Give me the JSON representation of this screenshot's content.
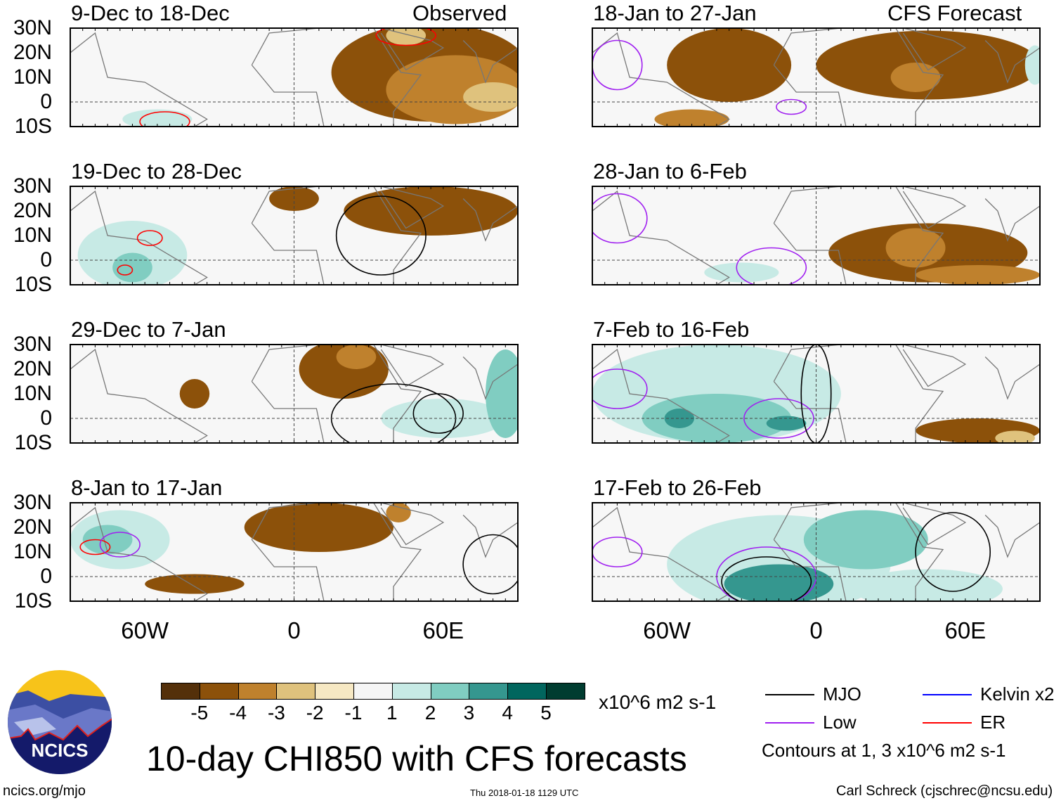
{
  "header": {
    "observed_label": "Observed",
    "forecast_label": "CFS Forecast"
  },
  "lat_labels": [
    "30N",
    "20N",
    "10N",
    "0",
    "10S"
  ],
  "lon_labels": [
    "60W",
    "0",
    "60E"
  ],
  "panels": [
    {
      "title": "9-Dec to 18-Dec",
      "shading": [
        [
          55,
          12,
          40,
          20,
          1
        ],
        [
          65,
          5,
          28,
          14,
          2
        ],
        [
          80,
          2,
          12,
          6,
          3
        ],
        [
          45,
          27,
          8,
          4,
          3
        ],
        [
          -55,
          -7,
          14,
          4,
          6
        ]
      ],
      "contours": [
        [
          -52,
          -8,
          10,
          4,
          "er"
        ],
        [
          45,
          27,
          12,
          4,
          "er"
        ]
      ]
    },
    {
      "title": "19-Dec to 28-Dec",
      "shading": [
        [
          -65,
          2,
          22,
          14,
          6
        ],
        [
          -65,
          -3,
          8,
          6,
          7
        ],
        [
          0,
          25,
          10,
          5,
          1
        ],
        [
          55,
          20,
          35,
          10,
          1
        ]
      ],
      "contours": [
        [
          -58,
          9,
          5,
          3,
          "er"
        ],
        [
          -68,
          -4,
          3,
          2,
          "er"
        ],
        [
          35,
          10,
          18,
          16,
          "mjo"
        ]
      ]
    },
    {
      "title": "29-Dec to 7-Jan",
      "shading": [
        [
          20,
          20,
          18,
          12,
          1
        ],
        [
          25,
          25,
          8,
          5,
          2
        ],
        [
          -40,
          10,
          6,
          6,
          1
        ],
        [
          60,
          0,
          25,
          8,
          6
        ],
        [
          85,
          10,
          8,
          18,
          7
        ]
      ],
      "contours": [
        [
          40,
          0,
          25,
          14,
          "mjo"
        ],
        [
          58,
          2,
          10,
          8,
          "mjo"
        ]
      ]
    },
    {
      "title": "8-Jan to 17-Jan",
      "shading": [
        [
          -70,
          15,
          20,
          12,
          6
        ],
        [
          -75,
          15,
          10,
          6,
          7
        ],
        [
          10,
          20,
          30,
          10,
          1
        ],
        [
          42,
          26,
          5,
          4,
          2
        ],
        [
          -40,
          -3,
          20,
          4,
          1
        ]
      ],
      "contours": [
        [
          -80,
          12,
          6,
          3,
          "er"
        ],
        [
          -70,
          13,
          8,
          5,
          "low"
        ],
        [
          80,
          5,
          12,
          12,
          "mjo"
        ]
      ]
    }
  ],
  "forecast_panels": [
    {
      "title": "18-Jan to 27-Jan",
      "shading": [
        [
          -35,
          15,
          25,
          15,
          1
        ],
        [
          45,
          15,
          45,
          14,
          1
        ],
        [
          40,
          10,
          10,
          6,
          2
        ],
        [
          -50,
          -7,
          15,
          4,
          2
        ],
        [
          88,
          15,
          4,
          8,
          6
        ]
      ],
      "contours": [
        [
          -80,
          15,
          10,
          10,
          "low"
        ],
        [
          -10,
          -2,
          6,
          3,
          "low"
        ]
      ]
    },
    {
      "title": "28-Jan to 6-Feb",
      "shading": [
        [
          45,
          3,
          40,
          12,
          1
        ],
        [
          40,
          5,
          12,
          8,
          2
        ],
        [
          65,
          -6,
          25,
          4,
          2
        ],
        [
          -30,
          -5,
          15,
          4,
          6
        ]
      ],
      "contours": [
        [
          -80,
          17,
          12,
          10,
          "low"
        ],
        [
          -18,
          -3,
          14,
          8,
          "low"
        ]
      ]
    },
    {
      "title": "7-Feb to 16-Feb",
      "shading": [
        [
          -40,
          10,
          50,
          20,
          6
        ],
        [
          -40,
          0,
          30,
          10,
          7
        ],
        [
          -55,
          0,
          6,
          4,
          8
        ],
        [
          -12,
          -2,
          8,
          3,
          8
        ],
        [
          65,
          -5,
          25,
          5,
          1
        ],
        [
          80,
          -8,
          8,
          3,
          3
        ]
      ],
      "contours": [
        [
          -80,
          12,
          12,
          8,
          "low"
        ],
        [
          -15,
          0,
          14,
          8,
          "low"
        ],
        [
          0,
          10,
          6,
          20,
          "mjo"
        ]
      ]
    },
    {
      "title": "17-Feb to 26-Feb",
      "shading": [
        [
          -15,
          5,
          45,
          20,
          6
        ],
        [
          20,
          15,
          25,
          12,
          7
        ],
        [
          -15,
          -3,
          22,
          8,
          8
        ],
        [
          45,
          -5,
          30,
          8,
          6
        ]
      ],
      "contours": [
        [
          -80,
          10,
          10,
          6,
          "low"
        ],
        [
          -20,
          0,
          20,
          12,
          "low"
        ],
        [
          -20,
          -2,
          18,
          10,
          "mjo"
        ],
        [
          55,
          10,
          15,
          16,
          "mjo"
        ]
      ]
    }
  ],
  "colorbar": {
    "colors": [
      "#54300a",
      "#8c510a",
      "#bf812d",
      "#dfc27d",
      "#f6e8c3",
      "#f5f5f5",
      "#c7eae5",
      "#80cdc1",
      "#35978f",
      "#01665e",
      "#003c30"
    ],
    "labels": [
      "-5",
      "-4",
      "-3",
      "-2",
      "-1",
      "1",
      "2",
      "3",
      "4",
      "5"
    ],
    "units": "x10^6 m2 s-1"
  },
  "legend": {
    "items": [
      {
        "label": "MJO",
        "color": "#000000"
      },
      {
        "label": "Kelvin x2",
        "color": "#0000ff"
      },
      {
        "label": "Low",
        "color": "#a020f0"
      },
      {
        "label": "ER",
        "color": "#ff0000"
      }
    ],
    "note": "Contours at 1, 3 x10^6 m2 s-1"
  },
  "logo": {
    "text": "NCICS"
  },
  "title": "10-day CHI850 with CFS forecasts",
  "footer": {
    "url": "ncics.org/mjo",
    "timestamp": "Thu 2018-01-18 1129 UTC",
    "author": "Carl Schreck (cjschrec@ncsu.edu)"
  }
}
